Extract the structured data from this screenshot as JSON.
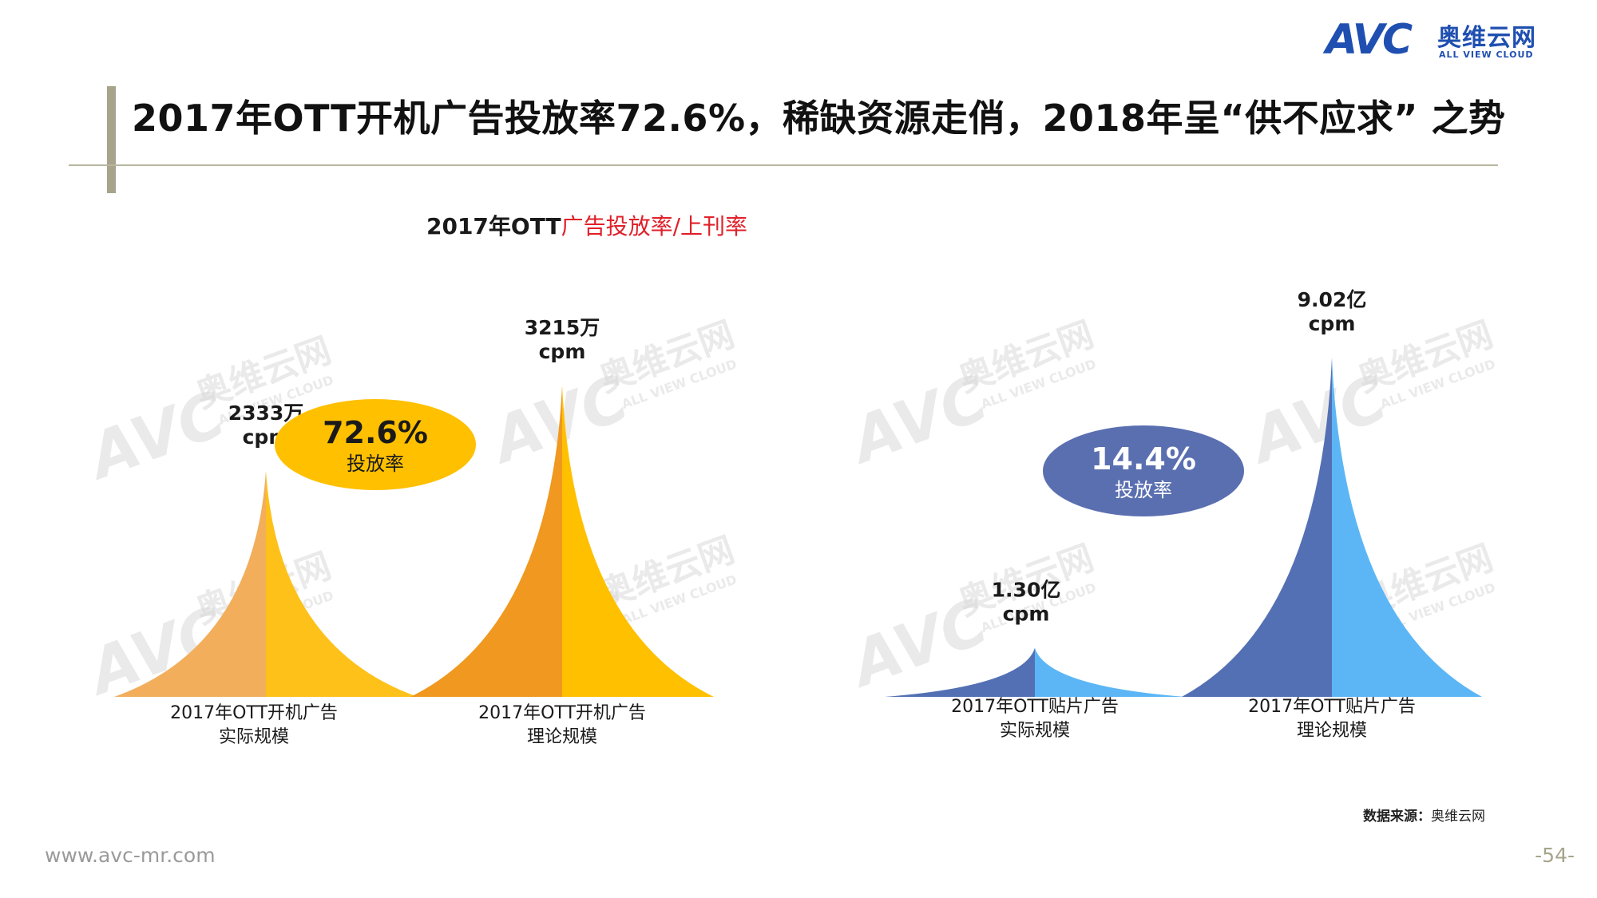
{
  "header": {
    "logo_mark": "AVC",
    "logo_cn": "奥维云网",
    "logo_en": "ALL VIEW CLOUD",
    "title": "2017年OTT开机广告投放率72.6%，稀缺资源走俏，2018年呈“供不应求” 之势"
  },
  "chart_title": {
    "part_a": "2017年OTT",
    "part_b": "广告投放率/上刊率"
  },
  "watermark": {
    "mark": "AVC",
    "cn": "奥维云网",
    "en": "ALL VIEW CLOUD"
  },
  "chart_data": [
    {
      "type": "area",
      "title": "",
      "categories": [
        "2017年OTT开机广告\n实际规模",
        "2017年OTT开机广告\n理论规模"
      ],
      "values": [
        2333,
        3215
      ],
      "value_labels": [
        "2333万",
        "3215万"
      ],
      "unit_label": "cpm",
      "rate": {
        "value": "72.6%",
        "label": "投放率"
      },
      "colors": {
        "left": [
          "#f2ae5b",
          "#f0981f"
        ],
        "right": [
          "#fdc11a",
          "#ffc000"
        ],
        "bubble": "#ffc000",
        "bubble_text": "#1a1a1a"
      }
    },
    {
      "type": "area",
      "title": "",
      "categories": [
        "2017年OTT贴片广告\n实际规模",
        "2017年OTT贴片广告\n理论规模"
      ],
      "values": [
        1.3,
        9.02
      ],
      "value_labels": [
        "1.30亿",
        "9.02亿"
      ],
      "unit_label": "cpm",
      "rate": {
        "value": "14.4%",
        "label": "投放率"
      },
      "colors": {
        "left": [
          "#5470b4",
          "#5470b4"
        ],
        "right": [
          "#5cb6f6",
          "#5cb6f6"
        ],
        "bubble": "#5a6fb0",
        "bubble_text": "#ffffff"
      }
    }
  ],
  "footer": {
    "source_label": "数据来源：",
    "source_value": "奥维云网",
    "url": "www.avc-mr.com",
    "page": "-54-"
  }
}
